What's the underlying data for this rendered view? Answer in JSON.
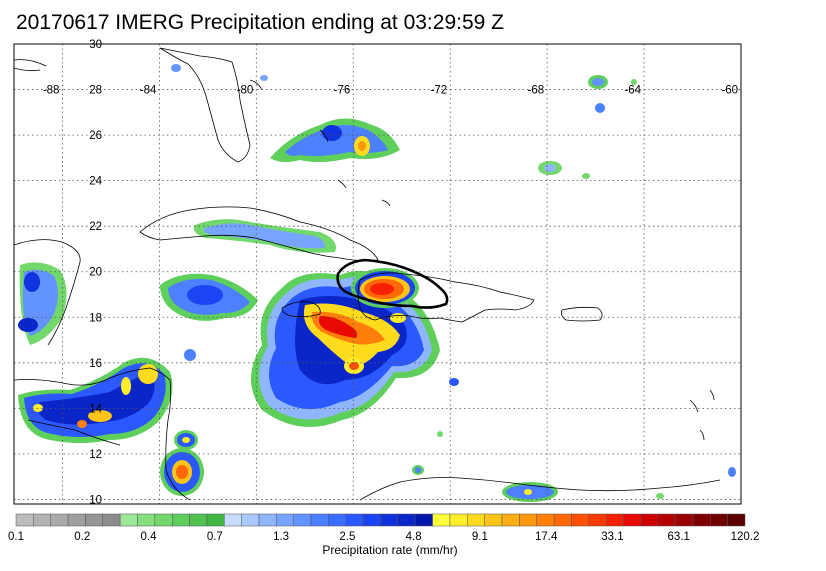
{
  "title": "20170617 IMERG Precipitation ending at 03:29:59 Z",
  "map": {
    "lon_labels": [
      "-88",
      "-84",
      "-80",
      "-76",
      "-72",
      "-68",
      "-64",
      "-60"
    ],
    "lat_labels": [
      "30",
      "28",
      "26",
      "24",
      "22",
      "20",
      "18",
      "16",
      "14",
      "12",
      "10"
    ],
    "lon_range": [
      -90,
      -60
    ],
    "lat_range": [
      9.8,
      30
    ]
  },
  "colorbar": {
    "label": "Precipitation rate (mm/hr)",
    "tick_labels": [
      "0.1",
      "0.2",
      "0.4",
      "0.7",
      "1.3",
      "2.5",
      "4.8",
      "9.1",
      "17.4",
      "33.1",
      "63.1",
      "120.2"
    ],
    "colors": [
      "#bdbdbd",
      "#b3b3b3",
      "#a9a9a9",
      "#9f9f9f",
      "#969696",
      "#8c8c8c",
      "#9ee89a",
      "#86e080",
      "#72d86c",
      "#5fcf5c",
      "#50c34e",
      "#43b743",
      "#c7dcff",
      "#a9c9ff",
      "#8fb6ff",
      "#77a4ff",
      "#6293ff",
      "#4c80ff",
      "#3b6cff",
      "#2b58ff",
      "#1c44f2",
      "#0f33de",
      "#0a25c8",
      "#0617b0",
      "#ffff3c",
      "#ffee2a",
      "#ffdb1e",
      "#ffc418",
      "#ffad12",
      "#ff970e",
      "#ff7f0a",
      "#ff6708",
      "#ff5006",
      "#ff3804",
      "#f82002",
      "#e80a00",
      "#cc0000",
      "#b30000",
      "#990000",
      "#800000",
      "#6e0000",
      "#5a0000"
    ]
  },
  "palette": {
    "ocean": "#ffffff",
    "land_line": "#000000",
    "grid": "#555555"
  }
}
